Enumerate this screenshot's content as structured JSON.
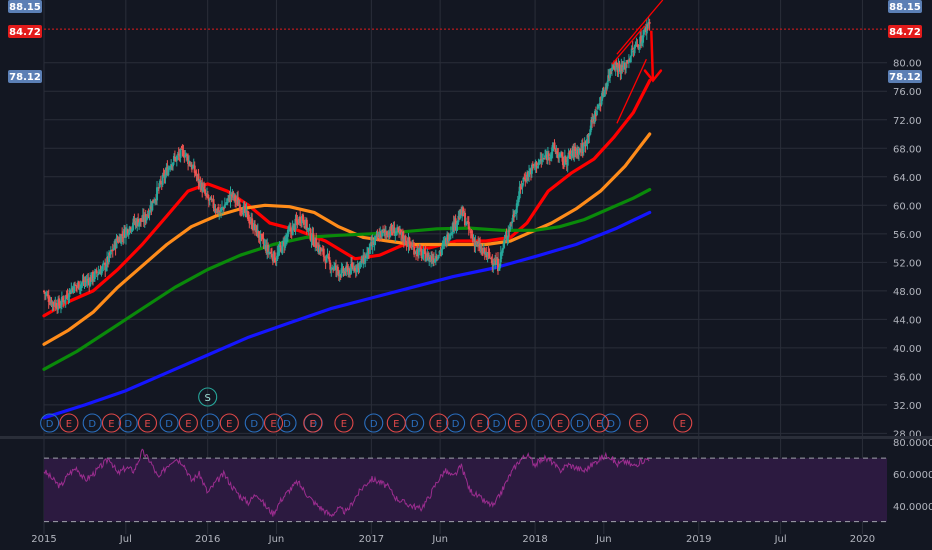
{
  "colors": {
    "background": "#131722",
    "grid": "#2a2e39",
    "candle_up": "#26a69a",
    "candle_down": "#ef5350",
    "ema_fast": "#ff0000",
    "ema_mid": "#ff8c1a",
    "ema_slow": "#0a8a0a",
    "ema_long": "#1515ff",
    "rsi_line": "#9b2d8f",
    "rsi_band": "#2c1a40",
    "price_tag_high": "#5b7fb5",
    "price_tag_current": "#e31b1b",
    "price_tag_low": "#5b7fb5",
    "annotation": "#ff0000"
  },
  "price_tags": {
    "high": "88.15",
    "current": "84.72",
    "low": "78.12"
  },
  "event_markers": {
    "split_label": "S",
    "earnings_label": "E",
    "dividend_label": "D"
  },
  "chart_data": [
    {
      "type": "candlestick",
      "title": "",
      "ylim": [
        27.5,
        88.8
      ],
      "y_ticks": [
        "28.00",
        "32.00",
        "36.00",
        "40.00",
        "44.00",
        "48.00",
        "52.00",
        "56.00",
        "60.00",
        "64.00",
        "68.00",
        "72.00",
        "76.00",
        "80.00"
      ],
      "y_tick_values": [
        28,
        32,
        36,
        40,
        44,
        48,
        52,
        56,
        60,
        64,
        68,
        72,
        76,
        80
      ],
      "x_tick_labels": [
        "2015",
        "Jul",
        "2016",
        "Jun",
        "2017",
        "Jun",
        "2018",
        "Jun",
        "2019",
        "Jul",
        "2020"
      ],
      "x_tick_years": [
        2015.0,
        2015.5,
        2016.0,
        2016.42,
        2017.0,
        2017.42,
        2018.0,
        2018.42,
        2019.0,
        2019.5,
        2020.0
      ],
      "xlim": [
        2015.0,
        2020.15
      ],
      "last_price": 84.72,
      "grid": true,
      "price_anchors": [
        [
          2015.0,
          48.0
        ],
        [
          2015.05,
          46.5
        ],
        [
          2015.1,
          46.0
        ],
        [
          2015.18,
          48.5
        ],
        [
          2015.28,
          49.5
        ],
        [
          2015.38,
          51.5
        ],
        [
          2015.45,
          55.0
        ],
        [
          2015.55,
          57.5
        ],
        [
          2015.62,
          58.0
        ],
        [
          2015.7,
          62.0
        ],
        [
          2015.78,
          66.0
        ],
        [
          2015.86,
          67.5
        ],
        [
          2015.92,
          65.0
        ],
        [
          2016.0,
          61.0
        ],
        [
          2016.08,
          59.0
        ],
        [
          2016.15,
          61.5
        ],
        [
          2016.22,
          59.5
        ],
        [
          2016.3,
          56.5
        ],
        [
          2016.36,
          54.0
        ],
        [
          2016.42,
          52.5
        ],
        [
          2016.5,
          56.0
        ],
        [
          2016.58,
          58.5
        ],
        [
          2016.64,
          55.5
        ],
        [
          2016.7,
          53.5
        ],
        [
          2016.76,
          51.5
        ],
        [
          2016.82,
          50.5
        ],
        [
          2016.88,
          51.0
        ],
        [
          2016.95,
          52.0
        ],
        [
          2017.0,
          54.0
        ],
        [
          2017.06,
          56.0
        ],
        [
          2017.14,
          56.5
        ],
        [
          2017.2,
          55.5
        ],
        [
          2017.26,
          54.0
        ],
        [
          2017.32,
          53.0
        ],
        [
          2017.38,
          52.5
        ],
        [
          2017.44,
          54.0
        ],
        [
          2017.5,
          57.0
        ],
        [
          2017.56,
          59.0
        ],
        [
          2017.62,
          55.5
        ],
        [
          2017.68,
          53.5
        ],
        [
          2017.74,
          52.5
        ],
        [
          2017.78,
          51.5
        ],
        [
          2017.82,
          55.0
        ],
        [
          2017.88,
          59.0
        ],
        [
          2017.93,
          63.5
        ],
        [
          2018.0,
          65.5
        ],
        [
          2018.06,
          66.5
        ],
        [
          2018.12,
          68.0
        ],
        [
          2018.18,
          66.0
        ],
        [
          2018.24,
          67.5
        ],
        [
          2018.3,
          68.0
        ],
        [
          2018.36,
          72.0
        ],
        [
          2018.42,
          75.5
        ],
        [
          2018.48,
          80.0
        ],
        [
          2018.54,
          79.0
        ],
        [
          2018.6,
          81.5
        ],
        [
          2018.66,
          83.5
        ],
        [
          2018.7,
          85.8
        ]
      ],
      "moving_averages": [
        {
          "color_key": "ema_fast",
          "points": [
            [
              2015.0,
              44.5
            ],
            [
              2015.15,
              46.5
            ],
            [
              2015.3,
              48.0
            ],
            [
              2015.45,
              51.0
            ],
            [
              2015.6,
              54.5
            ],
            [
              2015.75,
              58.5
            ],
            [
              2015.88,
              62.0
            ],
            [
              2016.0,
              63.0
            ],
            [
              2016.12,
              62.0
            ],
            [
              2016.25,
              60.0
            ],
            [
              2016.38,
              57.5
            ],
            [
              2016.55,
              56.5
            ],
            [
              2016.72,
              55.0
            ],
            [
              2016.9,
              52.5
            ],
            [
              2017.05,
              53.0
            ],
            [
              2017.2,
              54.5
            ],
            [
              2017.35,
              54.0
            ],
            [
              2017.52,
              55.0
            ],
            [
              2017.7,
              55.0
            ],
            [
              2017.85,
              55.5
            ],
            [
              2017.95,
              57.5
            ],
            [
              2018.08,
              62.0
            ],
            [
              2018.22,
              64.5
            ],
            [
              2018.36,
              66.5
            ],
            [
              2018.48,
              69.5
            ],
            [
              2018.6,
              73.0
            ],
            [
              2018.7,
              77.5
            ]
          ]
        },
        {
          "color_key": "ema_mid",
          "points": [
            [
              2015.0,
              40.5
            ],
            [
              2015.15,
              42.5
            ],
            [
              2015.3,
              45.0
            ],
            [
              2015.45,
              48.5
            ],
            [
              2015.6,
              51.5
            ],
            [
              2015.75,
              54.5
            ],
            [
              2015.9,
              57.0
            ],
            [
              2016.05,
              58.5
            ],
            [
              2016.2,
              59.5
            ],
            [
              2016.35,
              60.0
            ],
            [
              2016.5,
              59.8
            ],
            [
              2016.65,
              59.0
            ],
            [
              2016.8,
              57.0
            ],
            [
              2016.95,
              55.5
            ],
            [
              2017.1,
              55.0
            ],
            [
              2017.25,
              54.5
            ],
            [
              2017.4,
              54.5
            ],
            [
              2017.55,
              54.5
            ],
            [
              2017.7,
              54.5
            ],
            [
              2017.85,
              55.0
            ],
            [
              2017.95,
              56.0
            ],
            [
              2018.1,
              57.5
            ],
            [
              2018.25,
              59.5
            ],
            [
              2018.4,
              62.0
            ],
            [
              2018.55,
              65.5
            ],
            [
              2018.7,
              70.0
            ]
          ]
        },
        {
          "color_key": "ema_slow",
          "points": [
            [
              2015.0,
              37.0
            ],
            [
              2015.2,
              39.5
            ],
            [
              2015.4,
              42.5
            ],
            [
              2015.6,
              45.5
            ],
            [
              2015.8,
              48.5
            ],
            [
              2016.0,
              51.0
            ],
            [
              2016.2,
              53.0
            ],
            [
              2016.4,
              54.5
            ],
            [
              2016.6,
              55.5
            ],
            [
              2016.8,
              55.8
            ],
            [
              2017.0,
              56.0
            ],
            [
              2017.2,
              56.3
            ],
            [
              2017.4,
              56.7
            ],
            [
              2017.6,
              56.8
            ],
            [
              2017.8,
              56.5
            ],
            [
              2018.0,
              56.5
            ],
            [
              2018.15,
              57.0
            ],
            [
              2018.3,
              58.0
            ],
            [
              2018.45,
              59.5
            ],
            [
              2018.6,
              61.0
            ],
            [
              2018.7,
              62.2
            ]
          ]
        },
        {
          "color_key": "ema_long",
          "points": [
            [
              2015.0,
              30.2
            ],
            [
              2015.25,
              32.0
            ],
            [
              2015.5,
              34.0
            ],
            [
              2015.75,
              36.5
            ],
            [
              2016.0,
              39.0
            ],
            [
              2016.25,
              41.5
            ],
            [
              2016.5,
              43.5
            ],
            [
              2016.75,
              45.5
            ],
            [
              2017.0,
              47.0
            ],
            [
              2017.25,
              48.5
            ],
            [
              2017.5,
              50.0
            ],
            [
              2017.75,
              51.2
            ],
            [
              2018.0,
              52.8
            ],
            [
              2018.25,
              54.5
            ],
            [
              2018.5,
              56.8
            ],
            [
              2018.7,
              59.0
            ]
          ]
        }
      ],
      "annotations": [
        {
          "kind": "rising-wedge",
          "upper": [
            [
              2018.47,
              79.8
            ],
            [
              2018.67,
              85.2
            ]
          ],
          "lower": [
            [
              2018.5,
              71.5
            ],
            [
              2018.68,
              80.5
            ]
          ]
        },
        {
          "kind": "arrow-line",
          "points": [
            [
              2018.5,
              81.2
            ],
            [
              2018.78,
              88.8
            ]
          ]
        },
        {
          "kind": "down-arrow",
          "points": [
            [
              2018.71,
              84.5
            ],
            [
              2018.72,
              77.5
            ]
          ]
        }
      ]
    },
    {
      "type": "line",
      "title": "",
      "indicator": "RSI",
      "ylim": [
        26,
        82
      ],
      "y_ticks": [
        "40.0000",
        "60.0000",
        "80.0000"
      ],
      "y_tick_values": [
        40,
        60,
        80
      ],
      "bands": [
        30,
        70
      ],
      "anchors": [
        [
          2015.0,
          62
        ],
        [
          2015.05,
          57
        ],
        [
          2015.1,
          52
        ],
        [
          2015.15,
          60
        ],
        [
          2015.2,
          64
        ],
        [
          2015.25,
          56
        ],
        [
          2015.3,
          60
        ],
        [
          2015.35,
          65
        ],
        [
          2015.4,
          70
        ],
        [
          2015.45,
          60
        ],
        [
          2015.5,
          64
        ],
        [
          2015.55,
          62
        ],
        [
          2015.6,
          74
        ],
        [
          2015.65,
          68
        ],
        [
          2015.7,
          57
        ],
        [
          2015.75,
          65
        ],
        [
          2015.8,
          70
        ],
        [
          2015.85,
          67
        ],
        [
          2015.9,
          56
        ],
        [
          2015.95,
          60
        ],
        [
          2016.0,
          48
        ],
        [
          2016.05,
          55
        ],
        [
          2016.1,
          60
        ],
        [
          2016.15,
          52
        ],
        [
          2016.2,
          46
        ],
        [
          2016.25,
          42
        ],
        [
          2016.3,
          48
        ],
        [
          2016.35,
          40
        ],
        [
          2016.4,
          35
        ],
        [
          2016.45,
          44
        ],
        [
          2016.5,
          50
        ],
        [
          2016.55,
          55
        ],
        [
          2016.6,
          48
        ],
        [
          2016.65,
          42
        ],
        [
          2016.7,
          38
        ],
        [
          2016.75,
          34
        ],
        [
          2016.8,
          38
        ],
        [
          2016.85,
          36
        ],
        [
          2016.9,
          45
        ],
        [
          2016.95,
          52
        ],
        [
          2017.0,
          57
        ],
        [
          2017.05,
          55
        ],
        [
          2017.1,
          52
        ],
        [
          2017.15,
          45
        ],
        [
          2017.2,
          42
        ],
        [
          2017.25,
          40
        ],
        [
          2017.3,
          38
        ],
        [
          2017.35,
          45
        ],
        [
          2017.4,
          55
        ],
        [
          2017.45,
          62
        ],
        [
          2017.5,
          58
        ],
        [
          2017.55,
          65
        ],
        [
          2017.6,
          50
        ],
        [
          2017.65,
          46
        ],
        [
          2017.7,
          42
        ],
        [
          2017.75,
          40
        ],
        [
          2017.8,
          50
        ],
        [
          2017.85,
          60
        ],
        [
          2017.9,
          68
        ],
        [
          2017.95,
          72
        ],
        [
          2018.0,
          66
        ],
        [
          2018.05,
          70
        ],
        [
          2018.1,
          68
        ],
        [
          2018.15,
          62
        ],
        [
          2018.2,
          66
        ],
        [
          2018.25,
          64
        ],
        [
          2018.3,
          62
        ],
        [
          2018.35,
          66
        ],
        [
          2018.4,
          70
        ],
        [
          2018.45,
          72
        ],
        [
          2018.5,
          66
        ],
        [
          2018.55,
          68
        ],
        [
          2018.6,
          65
        ],
        [
          2018.65,
          68
        ],
        [
          2018.7,
          70
        ]
      ]
    }
  ]
}
